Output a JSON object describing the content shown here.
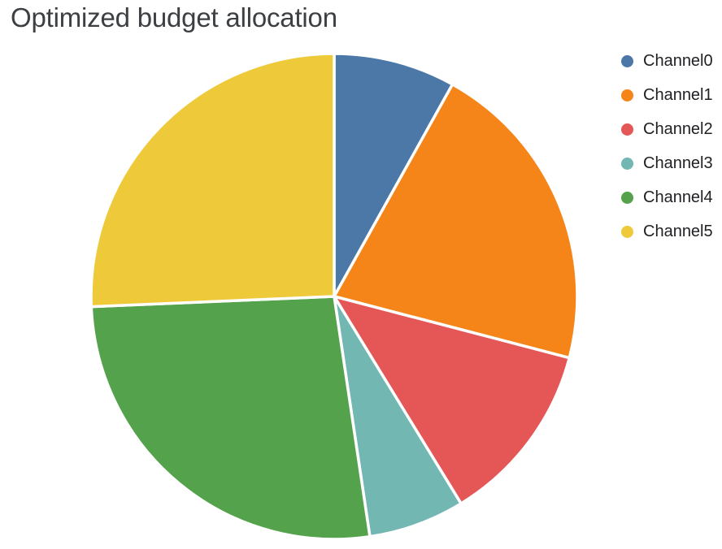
{
  "page": {
    "background_color": "#ffffff",
    "title_color": "#3c4043",
    "legend_text_color": "#202124"
  },
  "chart_data": {
    "type": "pie",
    "title": "Optimized budget allocation",
    "categories": [
      "Channel0",
      "Channel1",
      "Channel2",
      "Channel3",
      "Channel4",
      "Channel5"
    ],
    "values": [
      8.1,
      21.0,
      12.2,
      6.4,
      26.7,
      25.7
    ],
    "values_unit": "percent_of_total_estimated",
    "colors": [
      "#4C78A8",
      "#F58518",
      "#E45756",
      "#72B7B2",
      "#54A24B",
      "#EECA3B"
    ],
    "start_angle_deg": 0,
    "direction": "clockwise",
    "slice_separator_color": "#ffffff",
    "legend_position": "right",
    "legend": {
      "items": [
        {
          "label": "Channel0",
          "color": "#4C78A8"
        },
        {
          "label": "Channel1",
          "color": "#F58518"
        },
        {
          "label": "Channel2",
          "color": "#E45756"
        },
        {
          "label": "Channel3",
          "color": "#72B7B2"
        },
        {
          "label": "Channel4",
          "color": "#54A24B"
        },
        {
          "label": "Channel5",
          "color": "#EECA3B"
        }
      ]
    }
  }
}
